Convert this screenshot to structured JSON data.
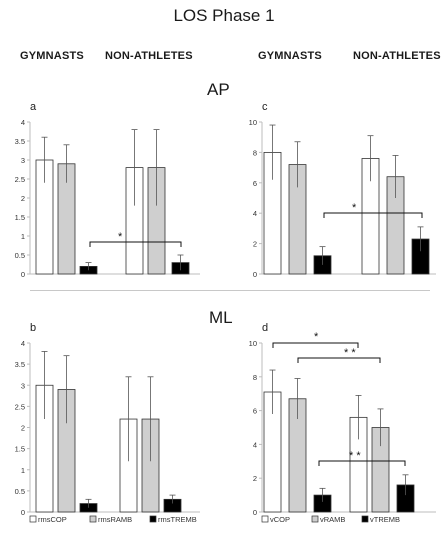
{
  "figure": {
    "title": "LOS Phase 1",
    "group_labels": [
      "GYMNASTS",
      "NON-ATHLETES",
      "GYMNASTS",
      "NON-ATHLETES"
    ],
    "row_labels": [
      "AP",
      "ML"
    ]
  },
  "colors": {
    "cop": "#ffffff",
    "ramb": "#cfcfcf",
    "tremb": "#000000",
    "stroke": "#333333",
    "axis": "#bdbdbd"
  },
  "chart_data": [
    {
      "panel": "a",
      "type": "bar",
      "categories": [
        "GYMNASTS",
        "NON-ATHLETES"
      ],
      "ylim": [
        0,
        4
      ],
      "yticks": [
        "0",
        "0.5",
        "1",
        "1.5",
        "2",
        "2.5",
        "3",
        "3.5",
        "4"
      ],
      "series": [
        {
          "name": "rmsCOP",
          "values": [
            3.0,
            2.8
          ],
          "errors": [
            0.6,
            1.0
          ]
        },
        {
          "name": "rmsRAMB",
          "values": [
            2.9,
            2.8
          ],
          "errors": [
            0.5,
            1.0
          ]
        },
        {
          "name": "rmsTREMB",
          "values": [
            0.2,
            0.3
          ],
          "errors": [
            0.1,
            0.2
          ]
        }
      ],
      "annotations": [
        {
          "label": "*",
          "between": "rmsTREMB"
        }
      ]
    },
    {
      "panel": "c",
      "type": "bar",
      "categories": [
        "GYMNASTS",
        "NON-ATHLETES"
      ],
      "ylim": [
        0,
        10
      ],
      "yticks": [
        "0",
        "2",
        "4",
        "6",
        "8",
        "10"
      ],
      "series": [
        {
          "name": "vCOP",
          "values": [
            8.0,
            7.6
          ],
          "errors": [
            1.8,
            1.5
          ]
        },
        {
          "name": "vRAMB",
          "values": [
            7.2,
            6.4
          ],
          "errors": [
            1.5,
            1.4
          ]
        },
        {
          "name": "vTREMB",
          "values": [
            1.2,
            2.3
          ],
          "errors": [
            0.6,
            0.8
          ]
        }
      ],
      "annotations": [
        {
          "label": "*",
          "between": "vTREMB"
        }
      ]
    },
    {
      "panel": "b",
      "type": "bar",
      "categories": [
        "GYMNASTS",
        "NON-ATHLETES"
      ],
      "ylim": [
        0,
        4
      ],
      "yticks": [
        "0",
        "0.5",
        "1",
        "1.5",
        "2",
        "2.5",
        "3",
        "3.5",
        "4"
      ],
      "series": [
        {
          "name": "rmsCOP",
          "values": [
            3.0,
            2.2
          ],
          "errors": [
            0.8,
            1.0
          ]
        },
        {
          "name": "rmsRAMB",
          "values": [
            2.9,
            2.2
          ],
          "errors": [
            0.8,
            1.0
          ]
        },
        {
          "name": "rmsTREMB",
          "values": [
            0.2,
            0.3
          ],
          "errors": [
            0.1,
            0.1
          ]
        }
      ],
      "legend": [
        "rmsCOP",
        "rmsRAMB",
        "rmsTREMB"
      ]
    },
    {
      "panel": "d",
      "type": "bar",
      "categories": [
        "GYMNASTS",
        "NON-ATHLETES"
      ],
      "ylim": [
        0,
        10
      ],
      "yticks": [
        "0",
        "2",
        "4",
        "6",
        "8",
        "10"
      ],
      "series": [
        {
          "name": "vCOP",
          "values": [
            7.1,
            5.6
          ],
          "errors": [
            1.3,
            1.3
          ]
        },
        {
          "name": "vRAMB",
          "values": [
            6.7,
            5.0
          ],
          "errors": [
            1.2,
            1.1
          ]
        },
        {
          "name": "vTREMB",
          "values": [
            1.0,
            1.6
          ],
          "errors": [
            0.4,
            0.6
          ]
        }
      ],
      "annotations": [
        {
          "label": "*",
          "between": "vCOP"
        },
        {
          "label": "* *",
          "between": "vRAMB"
        },
        {
          "label": "* *",
          "between": "vTREMB"
        }
      ],
      "legend": [
        "vCOP",
        "vRAMB",
        "vTREMB"
      ]
    }
  ]
}
